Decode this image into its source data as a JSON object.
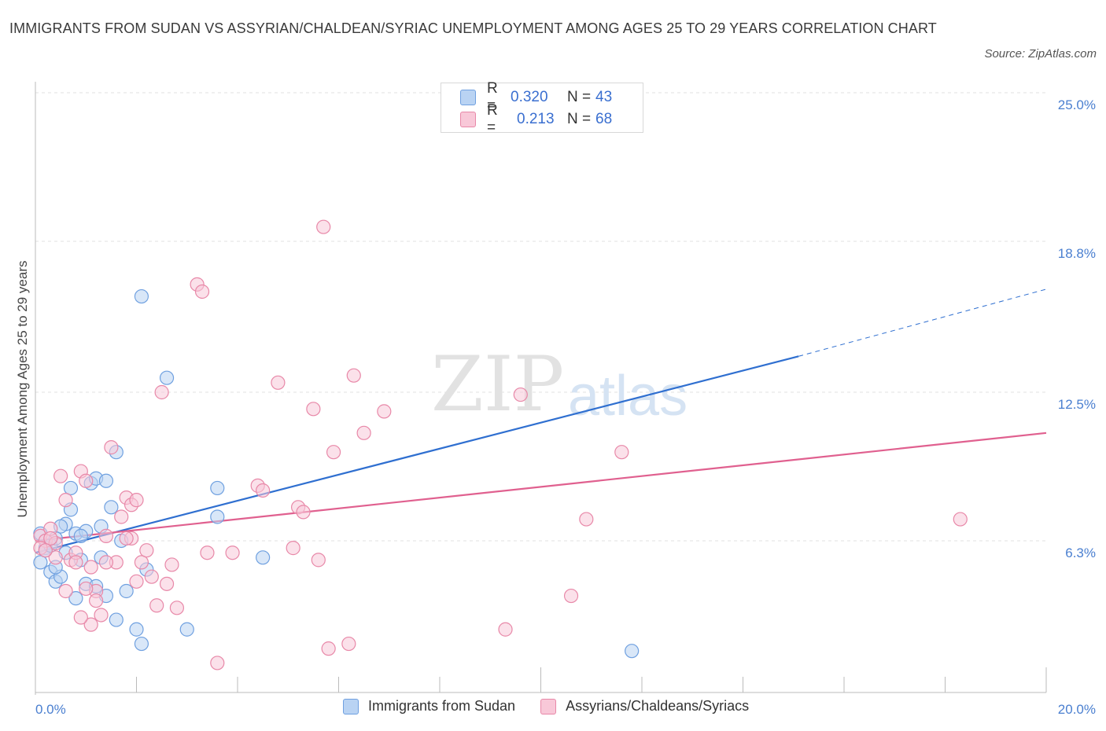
{
  "title": "IMMIGRANTS FROM SUDAN VS ASSYRIAN/CHALDEAN/SYRIAC UNEMPLOYMENT AMONG AGES 25 TO 29 YEARS CORRELATION CHART",
  "source": "Source: ZipAtlas.com",
  "watermark": {
    "zip": "ZIP",
    "atlas": "atlas"
  },
  "legend": {
    "rows": [
      {
        "r_label": "R =",
        "r_value": "0.320",
        "n_label": "N =",
        "n_value": "43",
        "color": "#a8c8f0"
      },
      {
        "r_label": "R =",
        "r_value": "0.213",
        "n_label": "N =",
        "n_value": "68",
        "color": "#f5b8cc"
      }
    ]
  },
  "chart_data": {
    "type": "scatter",
    "title": "IMMIGRANTS FROM SUDAN VS ASSYRIAN/CHALDEAN/SYRIAC UNEMPLOYMENT AMONG AGES 25 TO 29 YEARS CORRELATION CHART",
    "xlabel": "",
    "ylabel": "Unemployment Among Ages 25 to 29 years",
    "xlim": [
      0,
      20
    ],
    "ylim": [
      0,
      25
    ],
    "x_tick_labels": [
      "0.0%",
      "20.0%"
    ],
    "y_tick_labels": [
      "6.3%",
      "12.5%",
      "18.8%",
      "25.0%"
    ],
    "y_ticks": [
      6.3,
      12.5,
      18.8,
      25.0
    ],
    "grid": true,
    "legend_position": "bottom",
    "series": [
      {
        "name": "Immigrants from Sudan",
        "color": "#6fa0e0",
        "fill": "#b9d3f3",
        "trend": {
          "x": [
            0,
            15.1
          ],
          "y": [
            5.8,
            14.0
          ],
          "extended_x": [
            15.1,
            20
          ],
          "extended_y": [
            14.0,
            16.8
          ],
          "color": "#2f6fd0"
        },
        "points": [
          [
            0.1,
            5.4
          ],
          [
            0.2,
            6.0
          ],
          [
            0.3,
            5.0
          ],
          [
            0.4,
            4.6
          ],
          [
            0.5,
            4.8
          ],
          [
            0.6,
            7.0
          ],
          [
            0.5,
            6.9
          ],
          [
            0.7,
            7.6
          ],
          [
            0.8,
            6.6
          ],
          [
            0.9,
            5.5
          ],
          [
            1.0,
            6.7
          ],
          [
            1.1,
            8.7
          ],
          [
            1.2,
            8.9
          ],
          [
            1.3,
            6.9
          ],
          [
            1.4,
            8.8
          ],
          [
            0.7,
            8.5
          ],
          [
            1.5,
            7.7
          ],
          [
            1.6,
            10.0
          ],
          [
            1.8,
            4.2
          ],
          [
            1.4,
            4.0
          ],
          [
            2.1,
            16.5
          ],
          [
            2.0,
            2.6
          ],
          [
            2.1,
            2.0
          ],
          [
            2.2,
            5.1
          ],
          [
            2.6,
            13.1
          ],
          [
            3.0,
            2.6
          ],
          [
            3.6,
            7.3
          ],
          [
            3.6,
            8.5
          ],
          [
            4.5,
            5.6
          ],
          [
            11.8,
            1.7
          ],
          [
            1.3,
            5.6
          ],
          [
            0.2,
            5.9
          ],
          [
            0.8,
            3.9
          ],
          [
            1.0,
            4.5
          ],
          [
            1.6,
            3.0
          ],
          [
            0.4,
            5.2
          ],
          [
            1.2,
            4.4
          ],
          [
            0.3,
            6.1
          ],
          [
            0.6,
            5.8
          ],
          [
            0.9,
            6.5
          ],
          [
            0.1,
            6.6
          ],
          [
            1.7,
            6.3
          ],
          [
            0.4,
            6.4
          ]
        ]
      },
      {
        "name": "Assyrians/Chaldeans/Syriacs",
        "color": "#e888a8",
        "fill": "#f8c8d8",
        "trend": {
          "x": [
            0,
            20
          ],
          "y": [
            6.3,
            10.8
          ],
          "color": "#e0608f"
        },
        "points": [
          [
            0.1,
            6.5
          ],
          [
            0.2,
            6.3
          ],
          [
            0.3,
            6.8
          ],
          [
            0.4,
            6.2
          ],
          [
            0.5,
            9.0
          ],
          [
            0.6,
            8.0
          ],
          [
            0.7,
            5.5
          ],
          [
            0.8,
            5.8
          ],
          [
            0.9,
            9.2
          ],
          [
            1.0,
            8.8
          ],
          [
            1.1,
            5.2
          ],
          [
            1.2,
            4.2
          ],
          [
            1.3,
            3.2
          ],
          [
            1.4,
            6.5
          ],
          [
            1.5,
            10.2
          ],
          [
            1.6,
            5.4
          ],
          [
            1.7,
            7.3
          ],
          [
            1.8,
            8.1
          ],
          [
            1.9,
            6.4
          ],
          [
            2.0,
            4.6
          ],
          [
            2.1,
            5.4
          ],
          [
            2.2,
            5.9
          ],
          [
            2.4,
            3.6
          ],
          [
            2.5,
            12.5
          ],
          [
            2.6,
            4.5
          ],
          [
            2.7,
            5.3
          ],
          [
            2.8,
            3.5
          ],
          [
            3.2,
            17.0
          ],
          [
            3.3,
            16.7
          ],
          [
            3.4,
            5.8
          ],
          [
            3.9,
            5.8
          ],
          [
            4.4,
            8.6
          ],
          [
            4.5,
            8.4
          ],
          [
            4.8,
            12.9
          ],
          [
            5.1,
            6.0
          ],
          [
            5.2,
            7.7
          ],
          [
            5.3,
            7.5
          ],
          [
            5.5,
            11.8
          ],
          [
            5.6,
            5.5
          ],
          [
            5.7,
            19.4
          ],
          [
            5.8,
            1.8
          ],
          [
            5.9,
            10.0
          ],
          [
            6.2,
            2.0
          ],
          [
            6.3,
            13.2
          ],
          [
            6.5,
            10.8
          ],
          [
            6.9,
            11.7
          ],
          [
            9.3,
            2.6
          ],
          [
            9.6,
            12.4
          ],
          [
            10.6,
            4.0
          ],
          [
            10.9,
            7.2
          ],
          [
            11.6,
            10.0
          ],
          [
            18.3,
            7.2
          ],
          [
            3.6,
            1.2
          ],
          [
            0.3,
            6.4
          ],
          [
            1.0,
            4.3
          ],
          [
            1.2,
            3.8
          ],
          [
            0.6,
            4.2
          ],
          [
            0.8,
            5.4
          ],
          [
            1.4,
            5.4
          ],
          [
            1.9,
            7.8
          ],
          [
            2.3,
            4.8
          ],
          [
            0.1,
            6.0
          ],
          [
            0.4,
            5.6
          ],
          [
            0.2,
            5.9
          ],
          [
            1.1,
            2.8
          ],
          [
            0.9,
            3.1
          ],
          [
            1.8,
            6.4
          ],
          [
            2.0,
            8.0
          ]
        ]
      }
    ]
  },
  "bottom_legend": [
    {
      "label": "Immigrants from Sudan",
      "color": "#b9d3f3",
      "border": "#6fa0e0"
    },
    {
      "label": "Assyrians/Chaldeans/Syriacs",
      "color": "#f8c8d8",
      "border": "#e888a8"
    }
  ]
}
